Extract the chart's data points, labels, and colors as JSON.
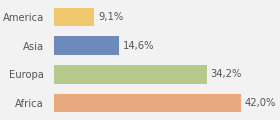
{
  "categories": [
    "America",
    "Asia",
    "Europa",
    "Africa"
  ],
  "values": [
    9.1,
    14.6,
    34.2,
    42.0
  ],
  "labels": [
    "9,1%",
    "14,6%",
    "34,2%",
    "42,0%"
  ],
  "bar_colors": [
    "#f0c96e",
    "#6b8cba",
    "#b5c98a",
    "#e8a97e"
  ],
  "background_color": "#f2f2f2",
  "xlim": [
    0,
    50
  ],
  "label_fontsize": 7.2,
  "tick_fontsize": 7.2
}
